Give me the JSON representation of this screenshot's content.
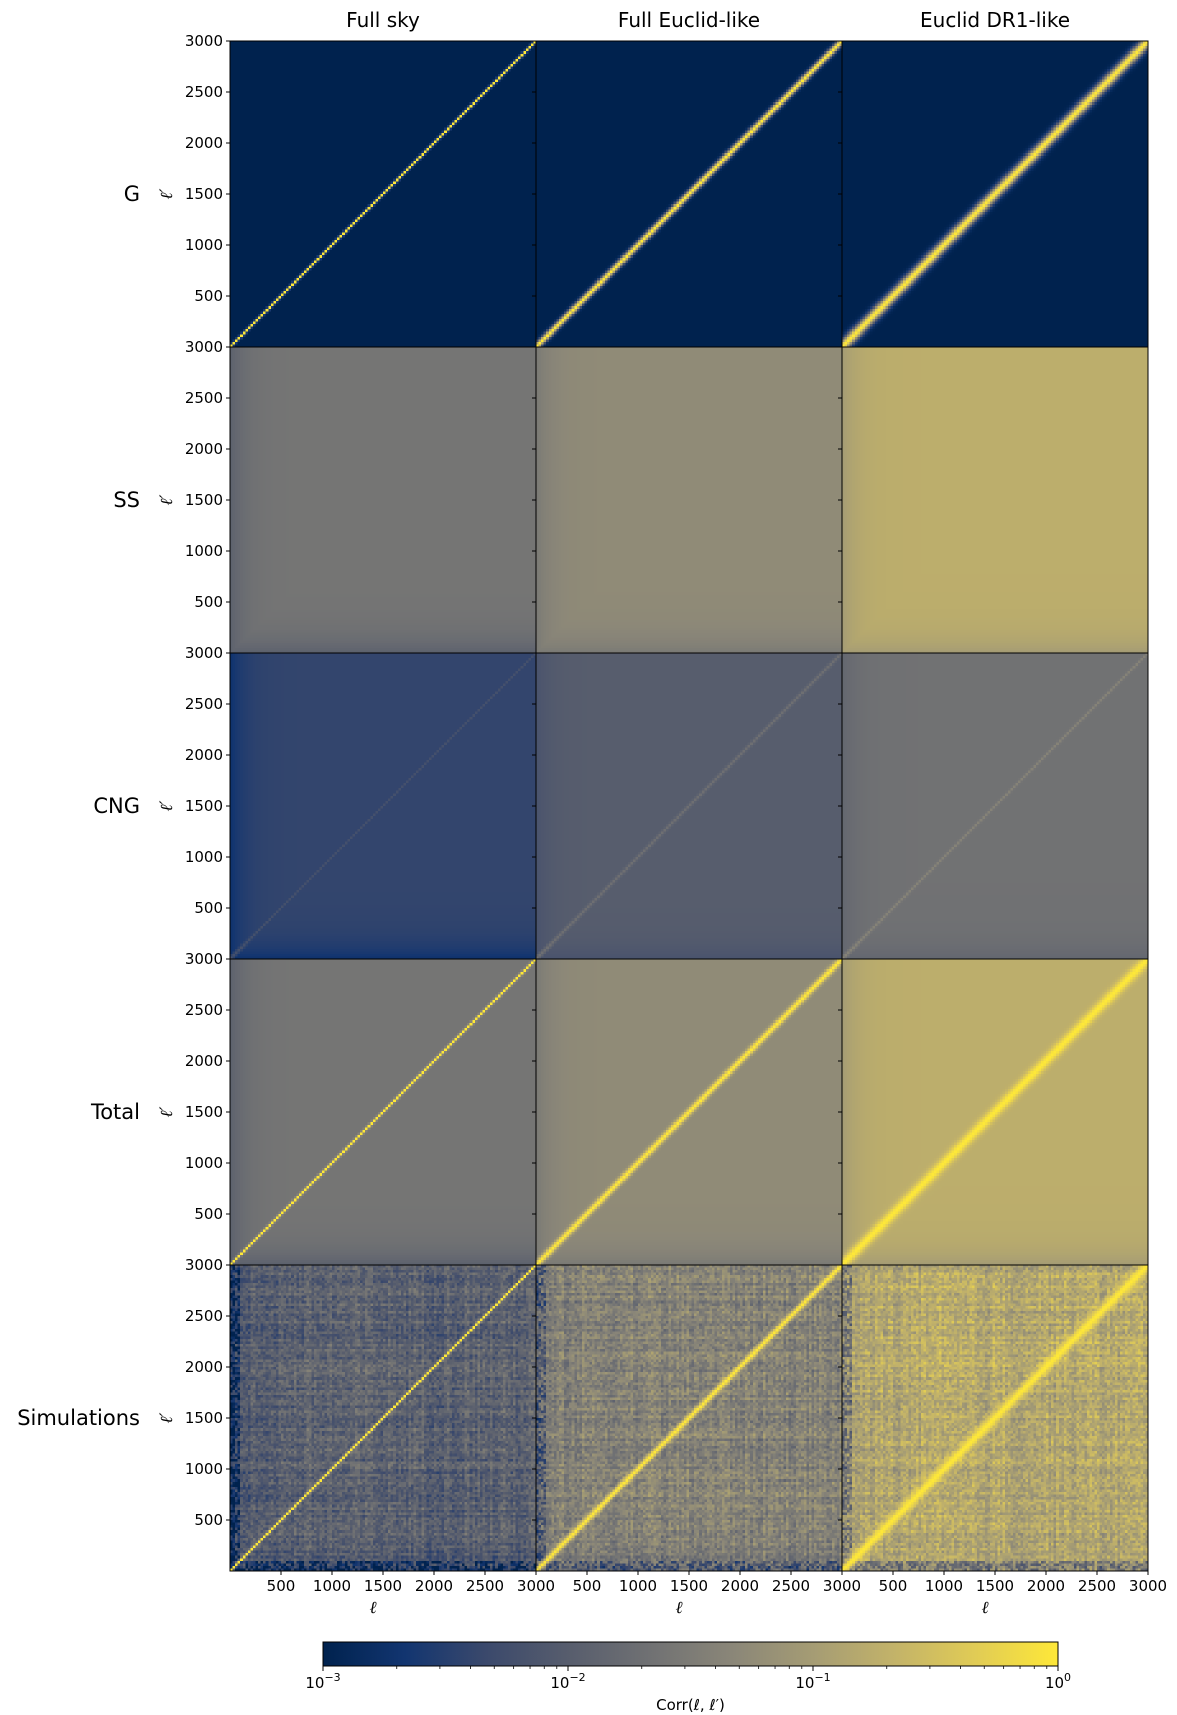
{
  "chart_data": {
    "type": "heatmap",
    "grid": {
      "rows": 5,
      "cols": 3
    },
    "column_titles": [
      "Full sky",
      "Full Euclid-like",
      "Euclid DR1-like"
    ],
    "row_titles": [
      "G",
      "SS",
      "CNG",
      "Total",
      "Simulations"
    ],
    "xlabel": "ℓ",
    "ylabel": "ℓ′",
    "x_range": [
      0,
      3000
    ],
    "y_range": [
      0,
      3000
    ],
    "x_ticks": [
      500,
      1000,
      1500,
      2000,
      2500,
      3000
    ],
    "x_tick_labels": [
      "500",
      "1000",
      "1500",
      "2000",
      "2500",
      "3000"
    ],
    "y_ticks": [
      500,
      1000,
      1500,
      2000,
      2500,
      3000
    ],
    "y_tick_labels": [
      "500",
      "1000",
      "1500",
      "2000",
      "2500",
      "3000"
    ],
    "colormap": "cividis",
    "colormap_stops": [
      "#00224e",
      "#123570",
      "#3b496c",
      "#575d6d",
      "#707173",
      "#8a8678",
      "#a59c74",
      "#c3b369",
      "#e1cc55",
      "#fee838"
    ],
    "colorbar": {
      "scale": "log",
      "range": [
        0.001,
        1
      ],
      "ticks": [
        0.001,
        0.01,
        0.1,
        1
      ],
      "tick_labels": [
        {
          "base": "10",
          "exp": "−3"
        },
        {
          "base": "10",
          "exp": "−2"
        },
        {
          "base": "10",
          "exp": "−1"
        },
        {
          "base": "10",
          "exp": "0"
        }
      ],
      "label": "Corr(ℓ, ℓ′)"
    },
    "panels": [
      [
        {
          "diag": 1.0,
          "diag_width_bins": 0.5,
          "background": 0.001,
          "simulated": false
        },
        {
          "diag": 1.0,
          "diag_width_bins": 1.2,
          "background": 0.001,
          "simulated": false
        },
        {
          "diag": 1.0,
          "diag_width_bins": 2.0,
          "background": 0.001,
          "simulated": false
        }
      ],
      [
        {
          "diag": null,
          "background": 0.025,
          "low_ell_background": 0.012,
          "simulated": false
        },
        {
          "diag": null,
          "background": 0.055,
          "low_ell_background": 0.03,
          "simulated": false
        },
        {
          "diag": null,
          "background": 0.18,
          "low_ell_background": 0.1,
          "simulated": false
        }
      ],
      [
        {
          "diag": 0.006,
          "background": 0.004,
          "low_ell_background": 0.002,
          "simulated": false
        },
        {
          "diag": 0.02,
          "background": 0.01,
          "low_ell_background": 0.007,
          "simulated": false
        },
        {
          "diag": 0.04,
          "background": 0.022,
          "low_ell_background": 0.015,
          "simulated": false
        }
      ],
      [
        {
          "diag": 1.0,
          "diag_width_bins": 0.5,
          "background": 0.025,
          "low_ell_background": 0.012,
          "simulated": false
        },
        {
          "diag": 1.0,
          "diag_width_bins": 1.2,
          "background": 0.055,
          "low_ell_background": 0.03,
          "simulated": false
        },
        {
          "diag": 1.0,
          "diag_width_bins": 2.0,
          "background": 0.18,
          "low_ell_background": 0.1,
          "simulated": false
        }
      ],
      [
        {
          "diag": 1.0,
          "diag_width_bins": 0.5,
          "background": 0.012,
          "low_ell_background": 0.004,
          "simulated": true
        },
        {
          "diag": 1.0,
          "diag_width_bins": 1.2,
          "background": 0.04,
          "low_ell_background": 0.02,
          "simulated": true
        },
        {
          "diag": 1.0,
          "diag_width_bins": 2.0,
          "background": 0.15,
          "low_ell_background": 0.07,
          "simulated": true
        }
      ]
    ]
  }
}
